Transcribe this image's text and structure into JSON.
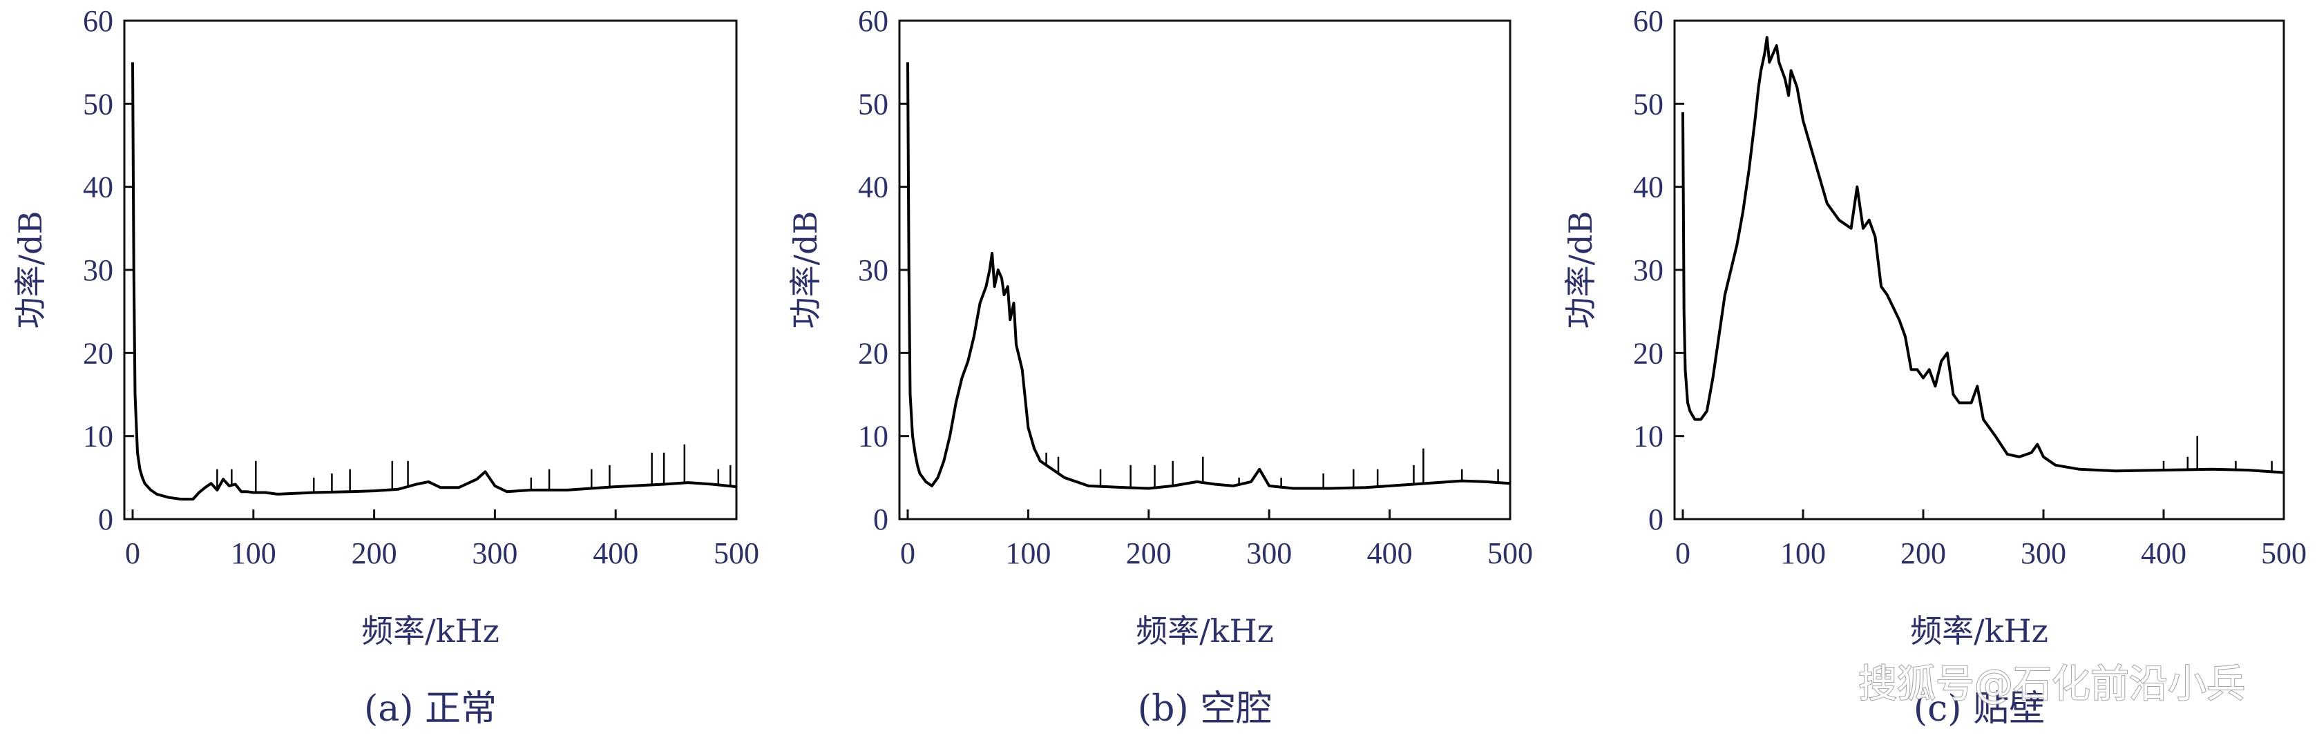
{
  "chart_data": [
    {
      "type": "line",
      "caption": "(a) 正常",
      "xlabel": "频率/kHz",
      "ylabel": "功率/dB",
      "xlim": [
        0,
        500
      ],
      "ylim": [
        0,
        60
      ],
      "xticks": [
        0,
        100,
        200,
        300,
        400,
        500
      ],
      "yticks": [
        0,
        10,
        20,
        30,
        40,
        50,
        60
      ],
      "grid": false,
      "series": [
        {
          "x": [
            0,
            1,
            2,
            4,
            6,
            8,
            10,
            15,
            20,
            30,
            40,
            50,
            55,
            60,
            65,
            70,
            75,
            80,
            85,
            90,
            95,
            100,
            110,
            120,
            150,
            180,
            200,
            220,
            235,
            245,
            255,
            270,
            285,
            292,
            300,
            310,
            330,
            360,
            400,
            440,
            460,
            480,
            500
          ],
          "y": [
            55,
            30,
            15,
            8,
            6,
            5,
            4.3,
            3.5,
            3,
            2.6,
            2.4,
            2.4,
            3.2,
            3.8,
            4.3,
            3.5,
            4.8,
            4,
            4.2,
            3.3,
            3.3,
            3.2,
            3.2,
            3,
            3.2,
            3.3,
            3.4,
            3.6,
            4.2,
            4.5,
            3.8,
            3.8,
            4.8,
            5.7,
            4,
            3.3,
            3.5,
            3.5,
            3.9,
            4.2,
            4.4,
            4.2,
            3.9
          ]
        }
      ],
      "spikes": [
        [
          70,
          6
        ],
        [
          82,
          6
        ],
        [
          102,
          7
        ],
        [
          150,
          5
        ],
        [
          165,
          5.5
        ],
        [
          180,
          6
        ],
        [
          215,
          7
        ],
        [
          228,
          7
        ],
        [
          330,
          5
        ],
        [
          345,
          6
        ],
        [
          380,
          6
        ],
        [
          395,
          6.5
        ],
        [
          430,
          8
        ],
        [
          440,
          8
        ],
        [
          457,
          9
        ],
        [
          485,
          6
        ],
        [
          495,
          6.5
        ]
      ]
    },
    {
      "type": "line",
      "caption": "(b) 空腔",
      "xlabel": "频率/kHz",
      "ylabel": "功率/dB",
      "xlim": [
        0,
        500
      ],
      "ylim": [
        0,
        60
      ],
      "xticks": [
        0,
        100,
        200,
        300,
        400,
        500
      ],
      "yticks": [
        0,
        10,
        20,
        30,
        40,
        50,
        60
      ],
      "grid": false,
      "series": [
        {
          "x": [
            0,
            1,
            2,
            4,
            6,
            8,
            10,
            15,
            20,
            25,
            30,
            35,
            40,
            45,
            50,
            55,
            60,
            65,
            68,
            70,
            72,
            75,
            78,
            80,
            83,
            85,
            88,
            90,
            95,
            100,
            105,
            110,
            120,
            130,
            150,
            180,
            200,
            220,
            240,
            255,
            270,
            285,
            292,
            300,
            320,
            350,
            380,
            400,
            430,
            460,
            480,
            500
          ],
          "y": [
            55,
            30,
            15,
            10,
            8,
            6.5,
            5.5,
            4.5,
            4,
            5,
            7,
            10,
            14,
            17,
            19,
            22,
            26,
            28,
            30,
            32,
            28,
            30,
            29,
            27,
            28,
            24,
            26,
            21,
            18,
            11,
            8.5,
            7,
            6,
            5,
            4,
            3.8,
            3.7,
            4,
            4.5,
            4.2,
            4,
            4.5,
            6,
            4,
            3.7,
            3.7,
            3.8,
            4,
            4.3,
            4.6,
            4.5,
            4.3
          ]
        }
      ],
      "spikes": [
        [
          115,
          8
        ],
        [
          125,
          7.5
        ],
        [
          160,
          6
        ],
        [
          185,
          6.5
        ],
        [
          205,
          6.5
        ],
        [
          220,
          7
        ],
        [
          245,
          7.5
        ],
        [
          275,
          5
        ],
        [
          310,
          5
        ],
        [
          345,
          5.5
        ],
        [
          370,
          6
        ],
        [
          390,
          6
        ],
        [
          420,
          6.5
        ],
        [
          428,
          8.5
        ],
        [
          460,
          6
        ],
        [
          490,
          6
        ]
      ]
    },
    {
      "type": "line",
      "caption": "(c) 贴壁",
      "xlabel": "频率/kHz",
      "ylabel": "功率/dB",
      "xlim": [
        0,
        500
      ],
      "ylim": [
        0,
        60
      ],
      "xticks": [
        0,
        100,
        200,
        300,
        400,
        500
      ],
      "yticks": [
        0,
        10,
        20,
        30,
        40,
        50,
        60
      ],
      "grid": false,
      "series": [
        {
          "x": [
            0,
            1,
            2,
            4,
            6,
            8,
            10,
            15,
            20,
            25,
            30,
            35,
            40,
            45,
            50,
            55,
            60,
            63,
            65,
            68,
            70,
            72,
            75,
            78,
            80,
            85,
            88,
            90,
            95,
            100,
            110,
            120,
            130,
            140,
            145,
            150,
            155,
            160,
            165,
            170,
            180,
            185,
            190,
            195,
            200,
            205,
            210,
            215,
            220,
            225,
            230,
            240,
            245,
            250,
            260,
            270,
            280,
            290,
            295,
            300,
            310,
            330,
            360,
            400,
            440,
            470,
            500
          ],
          "y": [
            49,
            25,
            18,
            14,
            13,
            12.5,
            12,
            12,
            13,
            17,
            22,
            27,
            30,
            33,
            37,
            42,
            48,
            52,
            54,
            56,
            58,
            55,
            56,
            57,
            55,
            53,
            51,
            54,
            52,
            48,
            43,
            38,
            36,
            35,
            40,
            35,
            36,
            34,
            28,
            27,
            24,
            22,
            18,
            18,
            17,
            18,
            16,
            19,
            20,
            15,
            14,
            14,
            16,
            12,
            10,
            7.8,
            7.5,
            8,
            9,
            7.5,
            6.5,
            6,
            5.8,
            5.9,
            6,
            5.9,
            5.6
          ]
        }
      ],
      "spikes": [
        [
          400,
          7
        ],
        [
          420,
          7.5
        ],
        [
          428,
          10
        ],
        [
          460,
          7
        ],
        [
          490,
          7
        ]
      ]
    }
  ],
  "watermark": "搜狐号@石化前沿小兵"
}
